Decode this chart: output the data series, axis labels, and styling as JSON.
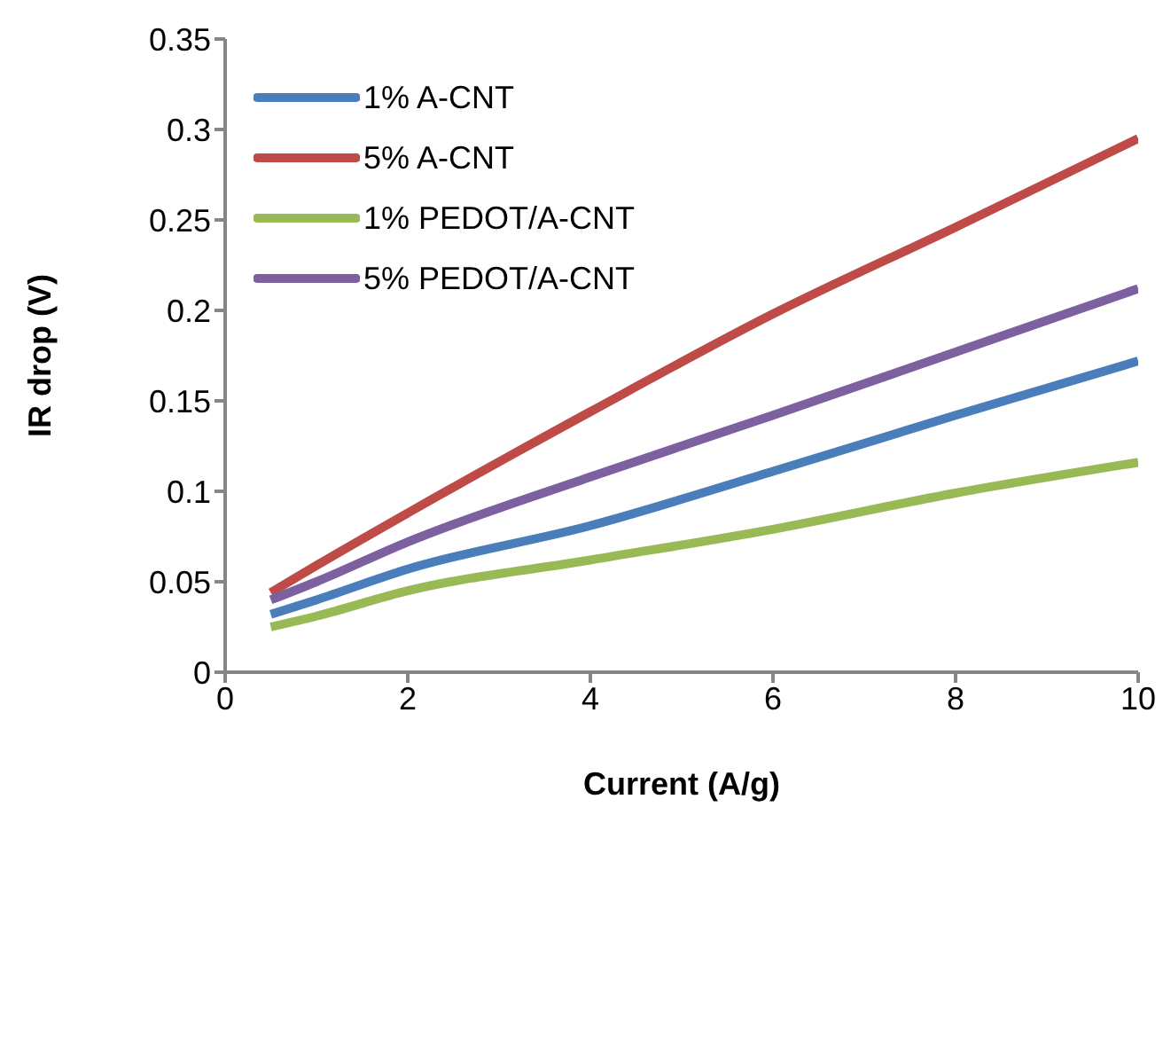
{
  "chart_data": {
    "type": "line",
    "xlabel": "Current (A/g)",
    "ylabel": "IR drop (V)",
    "x": [
      0.5,
      1,
      2,
      4,
      6,
      8,
      10
    ],
    "series": [
      {
        "name": "1% A-CNT",
        "color": "#4a7ebb",
        "values": [
          0.032,
          0.04,
          0.057,
          0.081,
          0.111,
          0.142,
          0.172
        ]
      },
      {
        "name": "5% A-CNT",
        "color": "#be4b48",
        "values": [
          0.044,
          0.059,
          0.088,
          0.144,
          0.198,
          0.246,
          0.295
        ]
      },
      {
        "name": "1% PEDOT/A-CNT",
        "color": "#98b954",
        "values": [
          0.025,
          0.031,
          0.045,
          0.062,
          0.079,
          0.099,
          0.116
        ]
      },
      {
        "name": "5% PEDOT/A-CNT",
        "color": "#7d60a0",
        "values": [
          0.04,
          0.05,
          0.072,
          0.108,
          0.142,
          0.177,
          0.212
        ]
      }
    ],
    "xlim": [
      0,
      10
    ],
    "xticks": [
      0,
      2,
      4,
      6,
      8,
      10
    ],
    "ylim": [
      0,
      0.35
    ],
    "yticks": [
      0,
      0.05,
      0.1,
      0.15,
      0.2,
      0.25,
      0.3,
      0.35
    ],
    "grid": false,
    "legend": "top left",
    "marker": "none",
    "line_style": "solid"
  }
}
